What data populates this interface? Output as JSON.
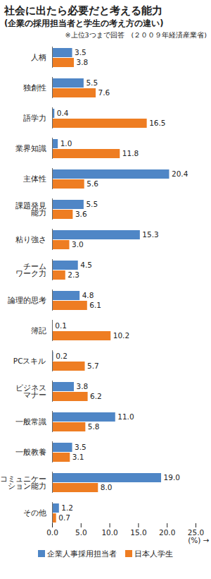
{
  "chart_data": {
    "type": "bar",
    "orientation": "horizontal",
    "title": "社会に出たら必要だと考える能力",
    "subtitle": "(企業の採用担当者と学生の考え方の違い)",
    "annotations": [
      "※上位3つまで回答　(２００９年経済産業省)"
    ],
    "xlabel": "(%)",
    "categories": [
      "人柄",
      "独創性",
      "語学力",
      "業界知識",
      "主体性",
      "課題発見\n能力",
      "粘り強さ",
      "チーム\nワーク力",
      "論理的思考",
      "簿記",
      "PCスキル",
      "ビジネス\nマナー",
      "一般常識",
      "一般教養",
      "コミュニケー\nション能力",
      "その他"
    ],
    "series": [
      {
        "name": "企業人事採用担当者",
        "color": "#4f86c6",
        "values": [
          3.5,
          5.5,
          0.4,
          1.0,
          20.4,
          5.5,
          15.3,
          4.5,
          4.8,
          0.1,
          0.2,
          3.8,
          11.0,
          3.5,
          19.0,
          1.2
        ],
        "value_labels": [
          "3.5",
          "5.5",
          "0.4",
          "1.0",
          "20.4",
          "5.5",
          "15.3",
          "4.5",
          "4.8",
          "0.1",
          "0.2",
          "3.8",
          "11.0",
          "3.5",
          "19.0",
          "1.2"
        ]
      },
      {
        "name": "日本人学生",
        "color": "#ee7d22",
        "values": [
          3.8,
          7.6,
          16.5,
          11.8,
          5.6,
          3.6,
          3.0,
          2.3,
          6.1,
          10.2,
          5.7,
          6.2,
          5.8,
          3.1,
          8.0,
          0.7
        ],
        "value_labels": [
          "3.8",
          "7.6",
          "16.5",
          "11.8",
          "5.6",
          "3.6",
          "3.0",
          "2.3",
          "6.1",
          "10.2",
          "5.7",
          "6.2",
          "5.8",
          "3.1",
          "8.0",
          "0.7"
        ]
      }
    ],
    "xlim": [
      0,
      25
    ],
    "xticks": [
      {
        "value": 0,
        "label": "0.0"
      },
      {
        "value": 5,
        "label": "5.0"
      },
      {
        "value": 10,
        "label": "10.0"
      },
      {
        "value": 15,
        "label": "15.0"
      },
      {
        "value": 20,
        "label": "20.0"
      },
      {
        "value": 25,
        "label": "25.0"
      }
    ],
    "grid": false,
    "data_labels": true,
    "legend": "bottom"
  }
}
